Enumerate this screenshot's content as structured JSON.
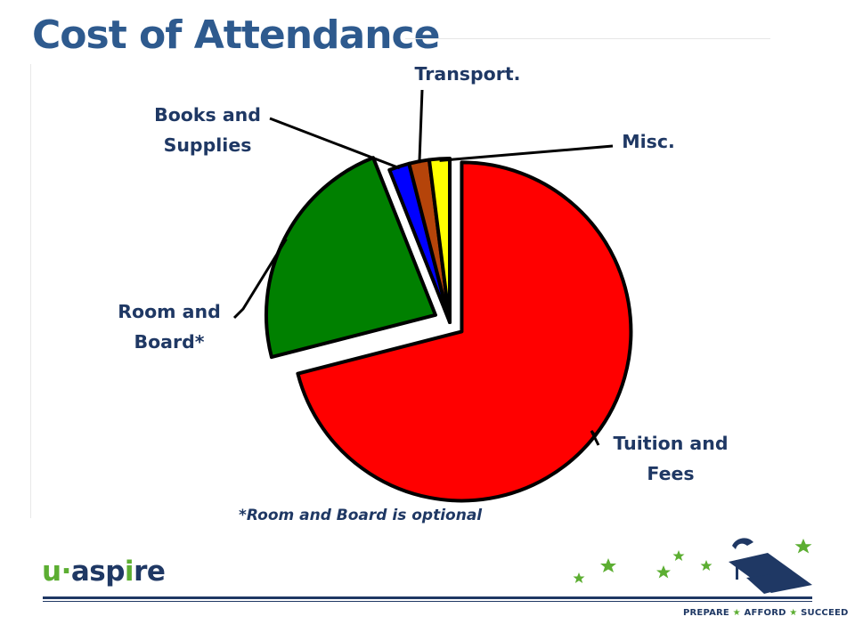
{
  "slide": {
    "title": "Cost of Attendance",
    "footnote": "*Room and Board is optional"
  },
  "branding": {
    "logo_prefix": "u",
    "logo_dot": "·",
    "logo_main": "asp",
    "logo_accent": "i",
    "logo_suffix": "re",
    "tagline_1": "PREPARE",
    "tagline_2": "AFFORD",
    "tagline_3": "SUCCEED",
    "tagline_sep": "★",
    "icon": "graduation-cap-icon",
    "decor": "star-icons"
  },
  "colors": {
    "title": "#2e5a8e",
    "text": "#1f3864",
    "brand_green": "#5cae32"
  },
  "chart_data": {
    "type": "pie",
    "title": "",
    "start_angle_deg": 0,
    "direction": "clockwise",
    "exploded": [
      "Tuition and Fees",
      "Room and Board*"
    ],
    "slices": [
      {
        "label": "Tuition and Fees",
        "value": 71,
        "color": "#ff0000"
      },
      {
        "label": "Room and Board*",
        "value": 23,
        "color": "#008000"
      },
      {
        "label": "Books and Supplies",
        "value": 2,
        "color": "#0000ff"
      },
      {
        "label": "Transport.",
        "value": 2,
        "color": "#b5440a"
      },
      {
        "label": "Misc.",
        "value": 2,
        "color": "#ffff00"
      }
    ],
    "label_lines": [
      [
        "Tuition and",
        "Fees"
      ],
      [
        "Room and",
        "Board*"
      ],
      [
        "Books and",
        "Supplies"
      ],
      [
        "Transport."
      ],
      [
        "Misc."
      ]
    ]
  }
}
